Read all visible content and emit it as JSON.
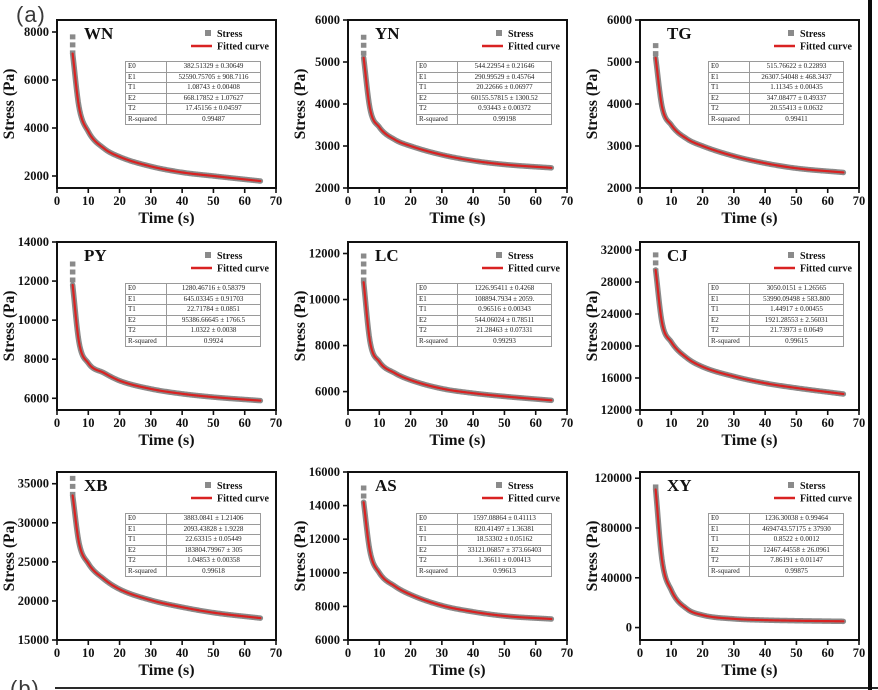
{
  "figure": {
    "label_a": "(a)",
    "label_b": "(b)",
    "colors": {
      "curve_red": "#d92222",
      "data_gray": "#8a8a8a",
      "frame": "#111111"
    }
  },
  "chart_data": [
    {
      "type": "line",
      "name": "WN",
      "xlabel": "Time (s)",
      "ylabel": "Stress (Pa)",
      "xlim": [
        0,
        70
      ],
      "xticks": [
        0,
        10,
        20,
        30,
        40,
        50,
        60,
        70
      ],
      "ylim": [
        1500,
        8500
      ],
      "yticks": [
        2000,
        4000,
        6000,
        8000
      ],
      "legend": [
        "Stress",
        "Fitted curve"
      ],
      "legend_position": "top-right",
      "grid": false,
      "series_t": [
        5,
        7,
        10,
        15,
        20,
        30,
        40,
        50,
        65
      ],
      "series_stress": [
        7100,
        4900,
        3850,
        3150,
        2800,
        2400,
        2150,
        2000,
        1790
      ],
      "data_max": 7900,
      "table": {
        "rows": [
          [
            "E0",
            "382.51329 ± 0.30649"
          ],
          [
            "E1",
            "52590.75705 ± 908.7116"
          ],
          [
            "T1",
            "1.08743 ± 0.00408"
          ],
          [
            "E2",
            "668.17852 ± 1.07627"
          ],
          [
            "T2",
            "17.45156 ± 0.04597"
          ],
          [
            "R-squared",
            "0.99487"
          ]
        ]
      }
    },
    {
      "type": "line",
      "name": "YN",
      "xlabel": "Time (s)",
      "ylabel": "Stress (Pa)",
      "xlim": [
        0,
        70
      ],
      "xticks": [
        0,
        10,
        20,
        30,
        40,
        50,
        60,
        70
      ],
      "ylim": [
        2000,
        6000
      ],
      "yticks": [
        2000,
        3000,
        4000,
        5000,
        6000
      ],
      "legend": [
        "Stress",
        "Fitted curve"
      ],
      "legend_position": "top-right",
      "grid": false,
      "series_t": [
        5,
        7,
        10,
        15,
        20,
        30,
        40,
        50,
        65
      ],
      "series_stress": [
        5100,
        3900,
        3450,
        3150,
        3000,
        2790,
        2650,
        2560,
        2480
      ],
      "data_max": 5650,
      "table": {
        "rows": [
          [
            "E0",
            "544.22954 ± 0.21646"
          ],
          [
            "E1",
            "290.99529 ± 0.45764"
          ],
          [
            "T1",
            "20.22666 ± 0.06977"
          ],
          [
            "E2",
            "60155.57815 ± 1300.52"
          ],
          [
            "T2",
            "0.93443 ± 0.00372"
          ],
          [
            "R-squared",
            "0.99198"
          ]
        ]
      }
    },
    {
      "type": "line",
      "name": "TG",
      "xlabel": "Time (s)",
      "ylabel": "Stress (Pa)",
      "xlim": [
        0,
        70
      ],
      "xticks": [
        0,
        10,
        20,
        30,
        40,
        50,
        60,
        70
      ],
      "ylim": [
        2000,
        6000
      ],
      "yticks": [
        2000,
        3000,
        4000,
        5000,
        6000
      ],
      "legend": [
        "Stress",
        "Fitted curve"
      ],
      "legend_position": "top-right",
      "grid": false,
      "series_t": [
        5,
        7,
        10,
        15,
        20,
        30,
        40,
        50,
        65
      ],
      "series_stress": [
        5100,
        3950,
        3500,
        3170,
        3000,
        2760,
        2590,
        2470,
        2370
      ],
      "data_max": 5450,
      "table": {
        "rows": [
          [
            "E0",
            "515.76622 ± 0.22893"
          ],
          [
            "E1",
            "26307.54048 ± 468.3437"
          ],
          [
            "T1",
            "1.11345 ± 0.00435"
          ],
          [
            "E2",
            "347.08477 ± 0.49337"
          ],
          [
            "T2",
            "20.55413 ± 0.0632"
          ],
          [
            "R-squared",
            "0.99411"
          ]
        ]
      }
    },
    {
      "type": "line",
      "name": "PY",
      "xlabel": "Time (s)",
      "ylabel": "Stress (Pa)",
      "xlim": [
        0,
        70
      ],
      "xticks": [
        0,
        10,
        20,
        30,
        40,
        50,
        60,
        70
      ],
      "ylim": [
        5400,
        14000
      ],
      "yticks": [
        6000,
        8000,
        10000,
        12000,
        14000
      ],
      "legend": [
        "Stress",
        "Fitted curve"
      ],
      "legend_position": "top-right",
      "grid": false,
      "series_t": [
        5,
        7,
        10,
        15,
        20,
        30,
        40,
        50,
        65
      ],
      "series_stress": [
        11800,
        8900,
        7800,
        7300,
        6900,
        6480,
        6230,
        6060,
        5880
      ],
      "data_max": 13000,
      "table": {
        "rows": [
          [
            "E0",
            "1280.46716 ± 0.58379"
          ],
          [
            "E1",
            "645.03345 ± 0.91703"
          ],
          [
            "T1",
            "22.71784 ± 0.0851"
          ],
          [
            "E2",
            "95386.66645 ± 1766.5"
          ],
          [
            "T2",
            "1.0322 ± 0.0038"
          ],
          [
            "R-squared",
            "0.9924"
          ]
        ]
      }
    },
    {
      "type": "line",
      "name": "LC",
      "xlabel": "Time (s)",
      "ylabel": "Stress (Pa)",
      "xlim": [
        0,
        70
      ],
      "xticks": [
        0,
        10,
        20,
        30,
        40,
        50,
        60,
        70
      ],
      "ylim": [
        5200,
        12500
      ],
      "yticks": [
        6000,
        8000,
        10000,
        12000
      ],
      "legend": [
        "Stress",
        "Fitted curve"
      ],
      "legend_position": "top-right",
      "grid": false,
      "series_t": [
        5,
        7,
        10,
        15,
        20,
        30,
        40,
        50,
        65
      ],
      "series_stress": [
        10750,
        8200,
        7300,
        6800,
        6500,
        6130,
        5930,
        5790,
        5620
      ],
      "data_max": 12000,
      "table": {
        "rows": [
          [
            "E0",
            "1226.95411 ± 0.4268"
          ],
          [
            "E1",
            "108894.7934 ± 2059."
          ],
          [
            "T1",
            "0.96516 ± 0.00343"
          ],
          [
            "E2",
            "544.06024 ± 0.78511"
          ],
          [
            "T2",
            "21.28463 ± 0.07331"
          ],
          [
            "R-squared",
            "0.99293"
          ]
        ]
      }
    },
    {
      "type": "line",
      "name": "CJ",
      "xlabel": "Time (s)",
      "ylabel": "Stress (Pa)",
      "xlim": [
        0,
        70
      ],
      "xticks": [
        0,
        10,
        20,
        30,
        40,
        50,
        60,
        70
      ],
      "ylim": [
        12000,
        33000
      ],
      "yticks": [
        12000,
        16000,
        20000,
        24000,
        28000,
        32000
      ],
      "legend": [
        "Stress",
        "Fitted curve"
      ],
      "legend_position": "top-right",
      "grid": false,
      "series_t": [
        5,
        7,
        10,
        15,
        20,
        30,
        40,
        50,
        65
      ],
      "series_stress": [
        29500,
        23000,
        20500,
        18500,
        17400,
        16200,
        15350,
        14750,
        14000
      ],
      "data_max": 31700,
      "table": {
        "rows": [
          [
            "E0",
            "3050.0151 ± 1.26565"
          ],
          [
            "E1",
            "53990.09498 ± 583.800"
          ],
          [
            "T1",
            "1.44917 ± 0.00455"
          ],
          [
            "E2",
            "1921.28553 ± 2.56031"
          ],
          [
            "T2",
            "21.73973 ± 0.0649"
          ],
          [
            "R-squared",
            "0.99615"
          ]
        ]
      }
    },
    {
      "type": "line",
      "name": "XB",
      "xlabel": "Time (s)",
      "ylabel": "Stress (Pa)",
      "xlim": [
        0,
        70
      ],
      "xticks": [
        0,
        10,
        20,
        30,
        40,
        50,
        60,
        70
      ],
      "ylim": [
        15000,
        36500
      ],
      "yticks": [
        15000,
        20000,
        25000,
        30000,
        35000
      ],
      "legend": [
        "Stress",
        "Fitted curve"
      ],
      "legend_position": "top-right",
      "grid": false,
      "series_t": [
        5,
        7,
        10,
        15,
        20,
        30,
        40,
        50,
        65
      ],
      "series_stress": [
        33500,
        27500,
        24800,
        22800,
        21500,
        20100,
        19200,
        18500,
        17800
      ],
      "data_max": 36000,
      "table": {
        "rows": [
          [
            "E0",
            "3883.0841 ± 1.21406"
          ],
          [
            "E1",
            "2093.43828 ± 1.9228"
          ],
          [
            "T1",
            "22.63315 ± 0.05449"
          ],
          [
            "E2",
            "183804.79967 ± 305"
          ],
          [
            "T2",
            "1.04853 ± 0.00358"
          ],
          [
            "R-squared",
            "0.99618"
          ]
        ]
      }
    },
    {
      "type": "line",
      "name": "AS",
      "xlabel": "Time (s)",
      "ylabel": "Stress (Pa)",
      "xlim": [
        0,
        70
      ],
      "xticks": [
        0,
        10,
        20,
        30,
        40,
        50,
        60,
        70
      ],
      "ylim": [
        6000,
        16000
      ],
      "yticks": [
        6000,
        8000,
        10000,
        12000,
        14000,
        16000
      ],
      "legend": [
        "Stress",
        "Fitted curve"
      ],
      "legend_position": "top-right",
      "grid": false,
      "series_t": [
        5,
        7,
        10,
        15,
        20,
        30,
        40,
        50,
        65
      ],
      "series_stress": [
        14200,
        11300,
        10000,
        9200,
        8700,
        8050,
        7680,
        7430,
        7250
      ],
      "data_max": 15200,
      "table": {
        "rows": [
          [
            "E0",
            "1597.08864 ± 0.41113"
          ],
          [
            "E1",
            "820.41497 ± 1.36381"
          ],
          [
            "T1",
            "18.53302 ± 0.05162"
          ],
          [
            "E2",
            "33121.06857 ± 373.66403"
          ],
          [
            "T2",
            "1.36611 ± 0.00413"
          ],
          [
            "R-squared",
            "0.99613"
          ]
        ]
      }
    },
    {
      "type": "line",
      "name": "XY",
      "xlabel": "Time (s)",
      "ylabel": "Stress (Pa)",
      "xlim": [
        0,
        70
      ],
      "xticks": [
        0,
        10,
        20,
        30,
        40,
        50,
        60,
        70
      ],
      "ylim": [
        -10000,
        125000
      ],
      "yticks": [
        0,
        40000,
        80000,
        120000
      ],
      "legend": [
        "Sterss",
        "Fitted curve"
      ],
      "legend_position": "top-right",
      "grid": false,
      "series_t": [
        5,
        7,
        10,
        15,
        20,
        30,
        40,
        50,
        65
      ],
      "series_stress": [
        111000,
        55000,
        30000,
        15000,
        10000,
        7000,
        6000,
        5500,
        5000
      ],
      "data_max": 115000,
      "table": {
        "rows": [
          [
            "E0",
            "1236.30038 ± 0.99464"
          ],
          [
            "E1",
            "4694743.57175 ± 37930"
          ],
          [
            "T1",
            "0.8522 ± 0.0012"
          ],
          [
            "E2",
            "12467.44558 ± 26.0961"
          ],
          [
            "T2",
            "7.86191 ± 0.01147"
          ],
          [
            "R-squared",
            "0.99875"
          ]
        ]
      }
    }
  ]
}
